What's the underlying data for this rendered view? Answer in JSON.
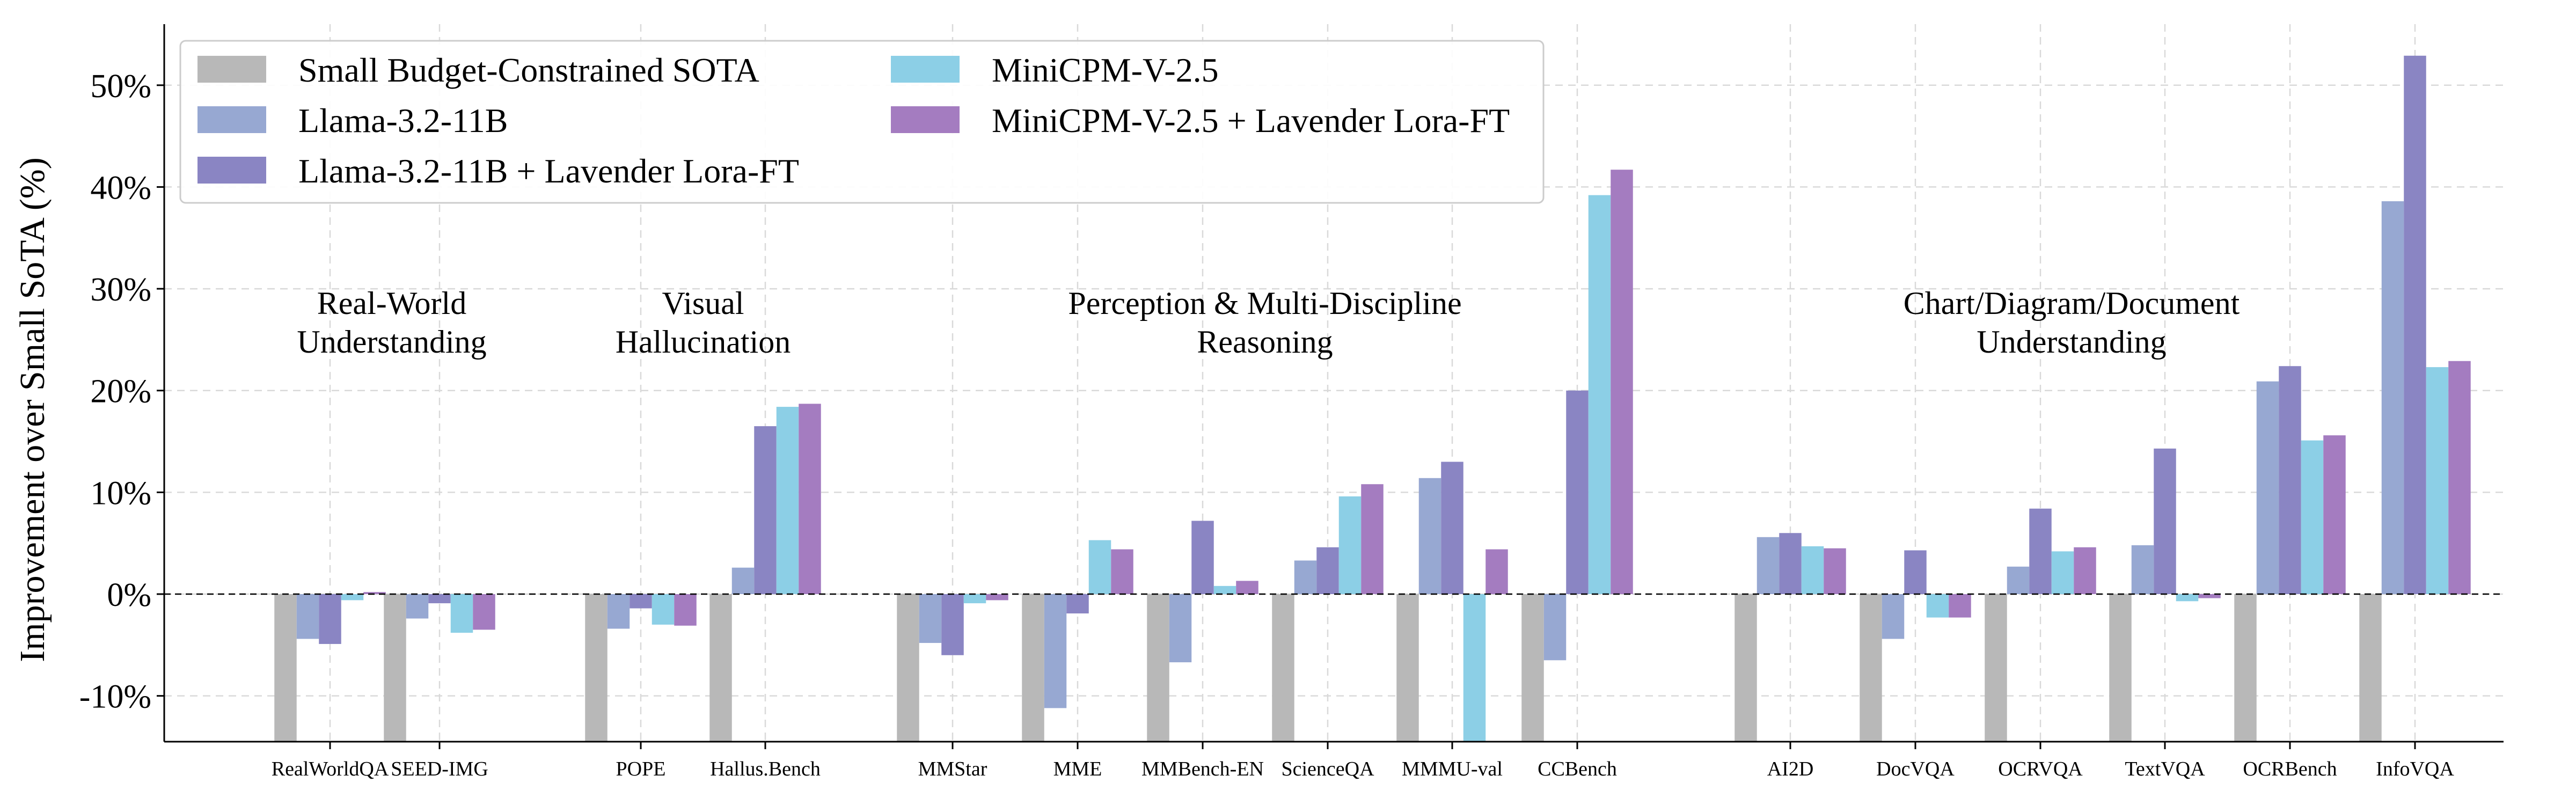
{
  "chart_data": {
    "type": "bar",
    "title": "",
    "xlabel": "",
    "ylabel": "Improvement over Small SoTA (%)",
    "ylim": [
      -14.5,
      56
    ],
    "yticks": [
      -10,
      0,
      10,
      20,
      30,
      40,
      50
    ],
    "ytick_labels": [
      "-10%",
      "0%",
      "10%",
      "20%",
      "30%",
      "40%",
      "50%"
    ],
    "grid": true,
    "legend_placement": "top-left",
    "reference_line": 0,
    "categories": [
      "RealWorldQA",
      "SEED-IMG",
      "POPE",
      "Hallus.Bench",
      "MMStar",
      "MME",
      "MMBench-EN",
      "ScienceQA",
      "MMMU-val",
      "CCBench",
      "AI2D",
      "DocVQA",
      "OCRVQA",
      "TextVQA",
      "OCRBench",
      "InfoVQA"
    ],
    "category_groups": [
      {
        "label_lines": [
          "Real-World",
          "Understanding"
        ],
        "categories": [
          "RealWorldQA",
          "SEED-IMG"
        ]
      },
      {
        "label_lines": [
          "Visual",
          "Hallucination"
        ],
        "categories": [
          "POPE",
          "Hallus.Bench"
        ]
      },
      {
        "label_lines": [
          "Perception & Multi-Discipline",
          "Reasoning"
        ],
        "categories": [
          "MMStar",
          "MME",
          "MMBench-EN",
          "ScienceQA",
          "MMMU-val",
          "CCBench"
        ]
      },
      {
        "label_lines": [
          "Chart/Diagram/Document",
          "Understanding"
        ],
        "categories": [
          "AI2D",
          "DocVQA",
          "OCRVQA",
          "TextVQA",
          "OCRBench",
          "InfoVQA"
        ]
      }
    ],
    "series": [
      {
        "name": "Small Budget-Constrained SOTA",
        "color": "#b8b8b8",
        "values": [
          -14.5,
          -14.5,
          -14.5,
          -14.5,
          -14.5,
          -14.5,
          -14.5,
          -14.5,
          -14.5,
          -14.5,
          -14.5,
          -14.5,
          -14.5,
          -14.5,
          -14.5,
          -14.5
        ]
      },
      {
        "name": "Llama-3.2-11B",
        "color": "#97a8d2",
        "values": [
          -4.4,
          -2.4,
          -3.4,
          2.6,
          -4.8,
          -11.2,
          -6.7,
          3.3,
          11.4,
          -6.5,
          5.6,
          -4.4,
          2.7,
          4.8,
          20.9,
          38.6
        ]
      },
      {
        "name": "Llama-3.2-11B + Lavender Lora-FT",
        "color": "#8a85c3",
        "values": [
          -4.9,
          -0.9,
          -1.4,
          16.5,
          -6.0,
          -1.9,
          7.2,
          4.6,
          13.0,
          20.0,
          6.0,
          4.3,
          8.4,
          14.3,
          22.4,
          52.9
        ]
      },
      {
        "name": "MiniCPM-V-2.5",
        "color": "#8ccfe6",
        "values": [
          -0.6,
          -3.8,
          -3.0,
          18.4,
          -0.9,
          5.3,
          0.8,
          9.6,
          -14.5,
          39.2,
          4.7,
          -2.3,
          4.2,
          -0.7,
          15.1,
          22.3
        ]
      },
      {
        "name": "MiniCPM-V-2.5 + Lavender Lora-FT",
        "color": "#a47cc0",
        "values": [
          0.2,
          -3.5,
          -3.1,
          18.7,
          -0.6,
          4.4,
          1.3,
          10.8,
          4.4,
          41.7,
          4.5,
          -2.3,
          4.6,
          -0.4,
          15.6,
          22.9
        ]
      }
    ]
  }
}
